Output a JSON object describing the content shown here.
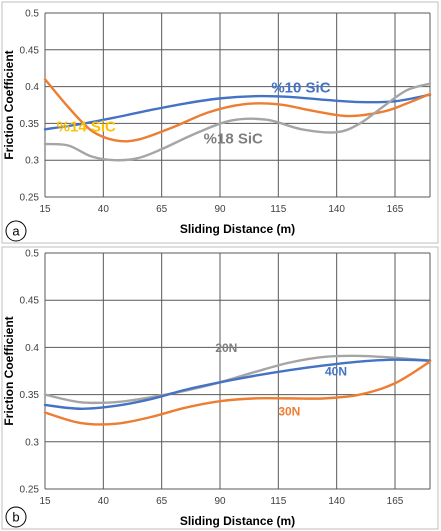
{
  "chart_data": [
    {
      "type": "line",
      "panel_label": "a",
      "xlabel": "Sliding Distance (m)",
      "ylabel": "Friction Coefficient",
      "x_ticks": [
        15,
        40,
        65,
        90,
        115,
        140,
        165
      ],
      "xlim": [
        15,
        180
      ],
      "ylim": [
        0.25,
        0.5
      ],
      "y_ticks": [
        "0.25",
        "0.3",
        "0.35",
        "0.4",
        "0.45",
        "0.5"
      ],
      "grid": true,
      "series": [
        {
          "name": "%10 SiC",
          "color": "#4472C4",
          "x": [
            15,
            30,
            45,
            60,
            75,
            90,
            105,
            120,
            135,
            150,
            165,
            180
          ],
          "y": [
            0.342,
            0.349,
            0.358,
            0.368,
            0.377,
            0.384,
            0.387,
            0.386,
            0.382,
            0.379,
            0.38,
            0.389
          ]
        },
        {
          "name": "%14 SiC",
          "color": "#ED7D31",
          "x": [
            15,
            25,
            35,
            45,
            55,
            70,
            85,
            100,
            115,
            130,
            145,
            160,
            170,
            180
          ],
          "y": [
            0.41,
            0.372,
            0.34,
            0.327,
            0.328,
            0.345,
            0.365,
            0.376,
            0.376,
            0.367,
            0.36,
            0.366,
            0.377,
            0.39
          ]
        },
        {
          "name": "%18 SiC",
          "color": "#A5A5A5",
          "x": [
            15,
            25,
            35,
            45,
            55,
            65,
            80,
            95,
            110,
            125,
            140,
            150,
            160,
            170,
            180
          ],
          "y": [
            0.322,
            0.32,
            0.305,
            0.3,
            0.303,
            0.315,
            0.337,
            0.354,
            0.355,
            0.342,
            0.338,
            0.35,
            0.373,
            0.395,
            0.404
          ]
        }
      ],
      "annotations": [
        {
          "text": "%10 SiC",
          "color": "#4472C4",
          "x": 112,
          "y": 0.392
        },
        {
          "text": "%14 SiC",
          "color": "#FFC000",
          "x": 20,
          "y": 0.339
        },
        {
          "text": "%18 SiC",
          "color": "#7F7F7F",
          "x": 83,
          "y": 0.323
        }
      ]
    },
    {
      "type": "line",
      "panel_label": "b",
      "xlabel": "Sliding Distance (m)",
      "ylabel": "Friction Coefficient",
      "x_ticks": [
        15,
        40,
        65,
        90,
        115,
        140,
        165
      ],
      "xlim": [
        15,
        180
      ],
      "ylim": [
        0.25,
        0.5
      ],
      "y_ticks": [
        "0.25",
        "0.3",
        "0.35",
        "0.4",
        "0.45",
        "0.5"
      ],
      "grid": true,
      "series": [
        {
          "name": "20N",
          "color": "#A5A5A5",
          "x": [
            15,
            30,
            45,
            60,
            75,
            90,
            105,
            120,
            135,
            150,
            165,
            180
          ],
          "y": [
            0.35,
            0.342,
            0.342,
            0.347,
            0.354,
            0.363,
            0.374,
            0.384,
            0.39,
            0.391,
            0.389,
            0.386
          ]
        },
        {
          "name": "40N",
          "color": "#4472C4",
          "x": [
            15,
            30,
            45,
            60,
            75,
            90,
            105,
            120,
            135,
            150,
            165,
            180
          ],
          "y": [
            0.339,
            0.335,
            0.338,
            0.345,
            0.355,
            0.363,
            0.37,
            0.376,
            0.381,
            0.385,
            0.387,
            0.386
          ]
        },
        {
          "name": "30N",
          "color": "#ED7D31",
          "x": [
            15,
            30,
            45,
            60,
            75,
            90,
            105,
            120,
            135,
            150,
            165,
            180
          ],
          "y": [
            0.331,
            0.32,
            0.319,
            0.326,
            0.336,
            0.343,
            0.346,
            0.346,
            0.346,
            0.35,
            0.362,
            0.385
          ]
        }
      ],
      "annotations": [
        {
          "text": "20N",
          "color": "#7F7F7F",
          "x": 88,
          "y": 0.395
        },
        {
          "text": "40N",
          "color": "#4472C4",
          "x": 135,
          "y": 0.37
        },
        {
          "text": "30N",
          "color": "#ED7D31",
          "x": 115,
          "y": 0.328
        }
      ]
    }
  ]
}
